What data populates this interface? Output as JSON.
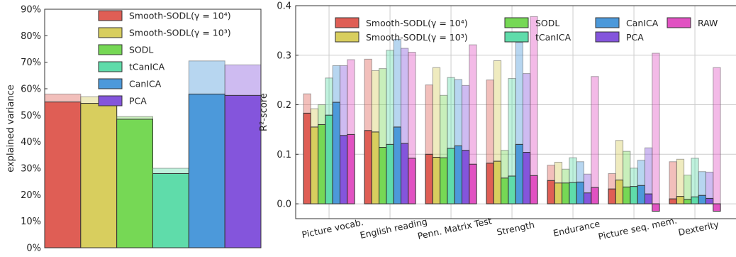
{
  "colors": {
    "smooth4": "#df5e55",
    "smooth3": "#d8ce5e",
    "sodl": "#76d855",
    "tcanica": "#5fdcaa",
    "canica": "#4c99da",
    "pca": "#8455dc",
    "raw": "#e152c2"
  },
  "chart_data": [
    {
      "type": "bar",
      "ylabel": "explained variance",
      "ylim": [
        0,
        90
      ],
      "yticks": [
        0,
        10,
        20,
        30,
        40,
        50,
        60,
        70,
        80,
        90
      ],
      "ytick_labels": [
        "0%",
        "10%",
        "20%",
        "30%",
        "40%",
        "50%",
        "60%",
        "70%",
        "80%",
        "90%"
      ],
      "legend": "top-right",
      "series": [
        {
          "name": "Smooth-SODL(γ = 10⁴)",
          "key": "smooth4",
          "value": 55,
          "light_value": 58
        },
        {
          "name": "Smooth-SODL(γ = 10³)",
          "key": "smooth3",
          "value": 54.5,
          "light_value": 57
        },
        {
          "name": "SODL",
          "key": "sodl",
          "value": 48.5,
          "light_value": 49.5
        },
        {
          "name": "tCanICA",
          "key": "tcanica",
          "value": 28,
          "light_value": 30
        },
        {
          "name": "CanICA",
          "key": "canica",
          "value": 58,
          "light_value": 70.5
        },
        {
          "name": "PCA",
          "key": "pca",
          "value": 57.5,
          "light_value": 69
        }
      ]
    },
    {
      "type": "bar",
      "ylabel": "R²-score",
      "ylim": [
        -0.03,
        0.4
      ],
      "yticks": [
        0.0,
        0.1,
        0.2,
        0.3,
        0.4
      ],
      "ytick_labels": [
        "0.0",
        "0.1",
        "0.2",
        "0.3",
        "0.4"
      ],
      "legend": "top",
      "grid": true,
      "categories": [
        "Picture vocab.",
        "English reading",
        "Penn. Matrix Test",
        "Strength",
        "Endurance",
        "Picture seq. mem.",
        "Dexterity"
      ],
      "series": [
        {
          "name": "Smooth-SODL(γ = 10⁴)",
          "key": "smooth4",
          "values": [
            0.183,
            0.148,
            0.1,
            0.082,
            0.047,
            0.03,
            0.01
          ],
          "light_values": [
            0.222,
            0.292,
            0.24,
            0.25,
            0.078,
            0.061,
            0.085
          ]
        },
        {
          "name": "Smooth-SODL(γ = 10³)",
          "key": "smooth3",
          "values": [
            0.155,
            0.145,
            0.094,
            0.086,
            0.042,
            0.048,
            0.015
          ],
          "light_values": [
            0.192,
            0.269,
            0.275,
            0.289,
            0.084,
            0.128,
            0.09
          ]
        },
        {
          "name": "SODL",
          "key": "sodl",
          "values": [
            0.16,
            0.114,
            0.093,
            0.052,
            0.042,
            0.034,
            0.009
          ],
          "light_values": [
            0.2,
            0.273,
            0.219,
            0.108,
            0.07,
            0.106,
            0.058
          ]
        },
        {
          "name": "tCanICA",
          "key": "tcanica",
          "values": [
            0.179,
            0.12,
            0.112,
            0.056,
            0.043,
            0.035,
            0.014
          ],
          "light_values": [
            0.254,
            0.31,
            0.255,
            0.253,
            0.093,
            0.072,
            0.092
          ]
        },
        {
          "name": "CanICA",
          "key": "canica",
          "values": [
            0.205,
            0.155,
            0.117,
            0.12,
            0.044,
            0.037,
            0.017
          ],
          "light_values": [
            0.279,
            0.332,
            0.251,
            0.326,
            0.085,
            0.088,
            0.065
          ]
        },
        {
          "name": "PCA",
          "key": "pca",
          "values": [
            0.138,
            0.122,
            0.108,
            0.104,
            0.022,
            0.02,
            0.011
          ],
          "light_values": [
            0.279,
            0.314,
            0.239,
            0.263,
            0.06,
            0.113,
            0.064
          ]
        },
        {
          "name": "RAW",
          "key": "raw",
          "values": [
            0.14,
            0.092,
            0.08,
            0.057,
            0.033,
            -0.015,
            -0.015
          ],
          "light_values": [
            0.291,
            0.306,
            0.321,
            0.378,
            0.257,
            0.304,
            0.275
          ]
        }
      ]
    }
  ]
}
